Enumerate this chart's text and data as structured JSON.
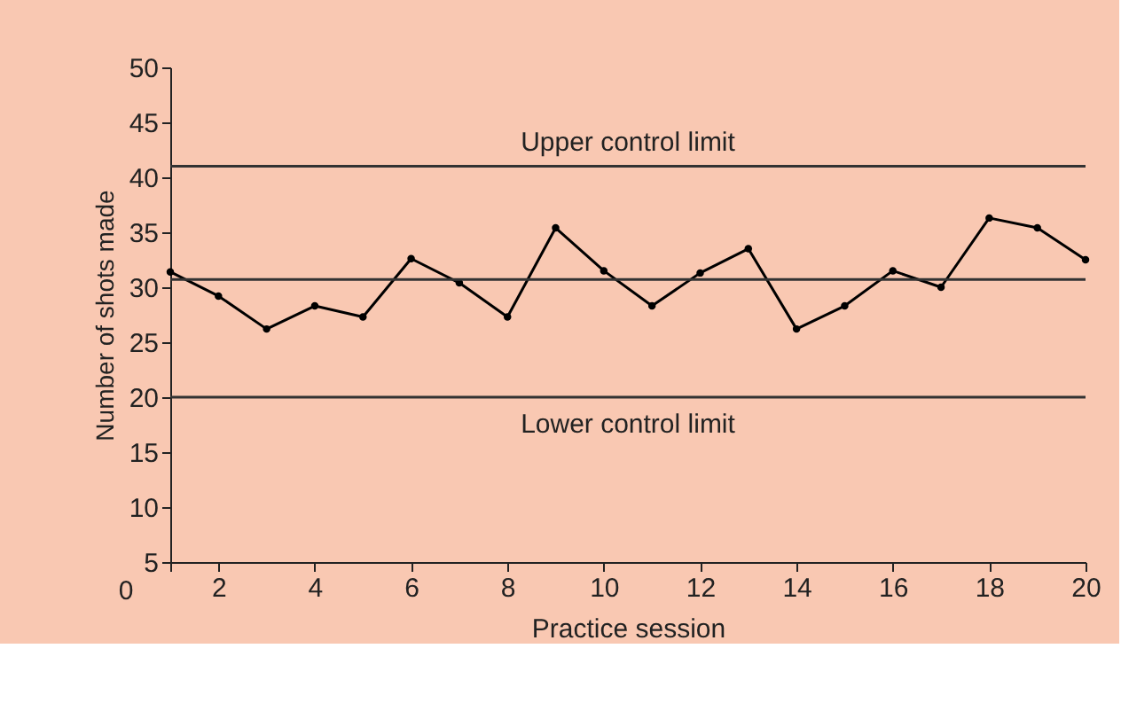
{
  "chart_data": {
    "type": "line",
    "xlabel": "Practice session",
    "ylabel": "Number of shots made",
    "x": [
      1,
      2,
      3,
      4,
      5,
      6,
      7,
      8,
      9,
      10,
      11,
      12,
      13,
      14,
      15,
      16,
      17,
      18,
      19,
      20
    ],
    "series": [
      {
        "color": "#000000",
        "values": [
          31.4,
          29.2,
          26.2,
          28.3,
          27.3,
          32.6,
          30.4,
          27.3,
          35.4,
          31.5,
          28.3,
          31.3,
          33.5,
          26.2,
          28.3,
          31.5,
          30.0,
          36.3,
          35.4,
          32.5
        ]
      }
    ],
    "xlim": [
      1,
      20
    ],
    "ylim": [
      5,
      50
    ],
    "xticks": [
      {
        "value": 1,
        "label": null
      },
      2,
      4,
      6,
      8,
      10,
      12,
      14,
      16,
      18,
      20
    ],
    "yticks": [
      5,
      10,
      15,
      20,
      25,
      30,
      35,
      40,
      45,
      50
    ],
    "ref_lines": [
      {
        "axis": "y",
        "value": 41,
        "label": "Upper control limit"
      },
      {
        "axis": "y",
        "value": 30.7
      },
      {
        "axis": "y",
        "value": 20,
        "label": "Lower control limit"
      }
    ],
    "annotations": [
      "0"
    ],
    "marker": "circle",
    "line_style": "solid",
    "grid": false
  }
}
